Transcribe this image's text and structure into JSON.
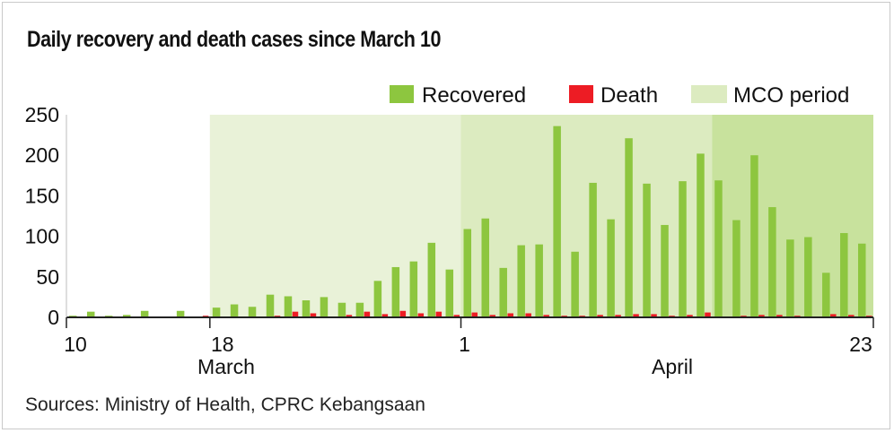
{
  "title": "Daily recovery and death cases since March 10",
  "source": "Sources: Ministry of Health, CPRC Kebangsaan",
  "colors": {
    "recovered": "#8dc63f",
    "death": "#ed1c24",
    "mco_phase1": "#e9f2d8",
    "mco_phase2": "#dcebc0",
    "mco_phase3": "#c8e29d",
    "axis": "#222222"
  },
  "chart_data": {
    "type": "bar",
    "title": "Daily recovery and death cases since March 10",
    "ylim": [
      0,
      250
    ],
    "yticks": [
      "0",
      "50",
      "100",
      "150",
      "200",
      "250"
    ],
    "xtick_labels": [
      "10",
      "18",
      "1",
      "23"
    ],
    "month_labels": [
      "March",
      "April"
    ],
    "legend": [
      "Recovered",
      "Death",
      "MCO period"
    ],
    "legend_position": "top-right",
    "x": [
      "Mar 10",
      "Mar 11",
      "Mar 12",
      "Mar 13",
      "Mar 14",
      "Mar 15",
      "Mar 16",
      "Mar 17",
      "Mar 18",
      "Mar 19",
      "Mar 20",
      "Mar 21",
      "Mar 22",
      "Mar 23",
      "Mar 24",
      "Mar 25",
      "Mar 26",
      "Mar 27",
      "Mar 28",
      "Mar 29",
      "Mar 30",
      "Mar 31",
      "Apr 1",
      "Apr 2",
      "Apr 3",
      "Apr 4",
      "Apr 5",
      "Apr 6",
      "Apr 7",
      "Apr 8",
      "Apr 9",
      "Apr 10",
      "Apr 11",
      "Apr 12",
      "Apr 13",
      "Apr 14",
      "Apr 15",
      "Apr 16",
      "Apr 17",
      "Apr 18",
      "Apr 19",
      "Apr 20",
      "Apr 21",
      "Apr 22",
      "Apr 23"
    ],
    "series": [
      {
        "name": "Recovered",
        "values": [
          2,
          7,
          2,
          3,
          8,
          0,
          8,
          0,
          12,
          16,
          13,
          28,
          26,
          21,
          25,
          18,
          18,
          45,
          62,
          69,
          92,
          59,
          109,
          122,
          61,
          89,
          90,
          236,
          81,
          166,
          121,
          221,
          165,
          114,
          168,
          202,
          169,
          120,
          200,
          136,
          96,
          99,
          55,
          104,
          91
        ]
      },
      {
        "name": "Death",
        "values": [
          0,
          0,
          0,
          0,
          0,
          0,
          0,
          2,
          0,
          0,
          1,
          2,
          7,
          5,
          1,
          3,
          7,
          4,
          8,
          5,
          7,
          3,
          6,
          3,
          5,
          5,
          3,
          2,
          2,
          3,
          3,
          4,
          4,
          2,
          3,
          6,
          1,
          2,
          3,
          3,
          2,
          1,
          4,
          3,
          2
        ]
      }
    ],
    "mco_period": {
      "from": "Mar 18",
      "to": "Apr 23",
      "phases": [
        [
          "Mar 18",
          "Mar 31"
        ],
        [
          "Apr 1",
          "Apr 14"
        ],
        [
          "Apr 15",
          "Apr 23"
        ]
      ]
    }
  }
}
